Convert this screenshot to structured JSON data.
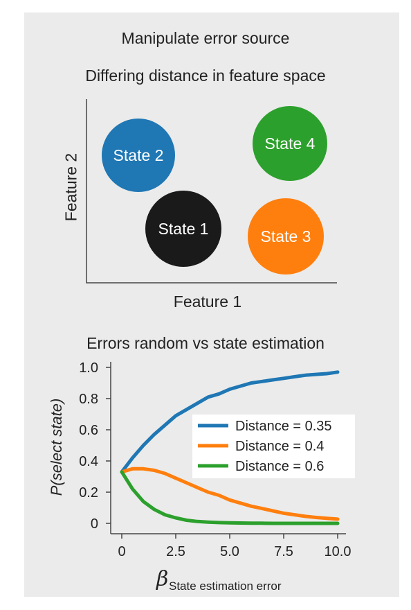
{
  "header": {
    "title": "Manipulate error source",
    "subtitle": "Differing distance in feature space"
  },
  "feature_space": {
    "xlabel": "Feature 1",
    "ylabel": "Feature 2",
    "states": [
      {
        "label": "State 2",
        "color": "#1f77b4"
      },
      {
        "label": "State 4",
        "color": "#2ca02c"
      },
      {
        "label": "State 1",
        "color": "#1a1a1a"
      },
      {
        "label": "State 3",
        "color": "#ff7f0e"
      }
    ]
  },
  "chart_data": {
    "type": "line",
    "title": "Errors random vs state estimation",
    "xlabel_symbol": "β",
    "xlabel_subscript": "State estimation error",
    "ylabel": "P(select state)",
    "xlim": [
      0,
      10
    ],
    "ylim": [
      0,
      1
    ],
    "xticks": [
      "0",
      "2.5",
      "5.0",
      "7.5",
      "10.0"
    ],
    "yticks": [
      "0",
      "0.2",
      "0.4",
      "0.6",
      "0.8",
      "1.0"
    ],
    "legend_position": "center-right",
    "series": [
      {
        "name": "Distance = 0.35",
        "color": "#1f77b4",
        "x": [
          0,
          0.5,
          1,
          1.5,
          2,
          2.5,
          3,
          3.5,
          4,
          4.5,
          5,
          5.5,
          6,
          6.5,
          7,
          7.5,
          8,
          8.5,
          9,
          9.5,
          10
        ],
        "y": [
          0.33,
          0.42,
          0.5,
          0.57,
          0.63,
          0.69,
          0.73,
          0.77,
          0.81,
          0.83,
          0.86,
          0.88,
          0.9,
          0.91,
          0.92,
          0.93,
          0.94,
          0.95,
          0.955,
          0.96,
          0.97
        ]
      },
      {
        "name": "Distance = 0.4",
        "color": "#ff7f0e",
        "x": [
          0,
          0.5,
          1,
          1.5,
          2,
          2.5,
          3,
          3.5,
          4,
          4.5,
          5,
          5.5,
          6,
          6.5,
          7,
          7.5,
          8,
          8.5,
          9,
          9.5,
          10
        ],
        "y": [
          0.33,
          0.35,
          0.35,
          0.34,
          0.32,
          0.29,
          0.26,
          0.23,
          0.2,
          0.18,
          0.15,
          0.13,
          0.11,
          0.095,
          0.08,
          0.065,
          0.055,
          0.045,
          0.038,
          0.032,
          0.027
        ]
      },
      {
        "name": "Distance = 0.6",
        "color": "#2ca02c",
        "x": [
          0,
          0.5,
          1,
          1.5,
          2,
          2.5,
          3,
          3.5,
          4,
          4.5,
          5,
          5.5,
          6,
          6.5,
          7,
          7.5,
          8,
          8.5,
          9,
          9.5,
          10
        ],
        "y": [
          0.33,
          0.22,
          0.14,
          0.09,
          0.055,
          0.035,
          0.02,
          0.012,
          0.008,
          0.005,
          0.003,
          0.002,
          0.001,
          0.001,
          0,
          0,
          0,
          0,
          0,
          0,
          0
        ]
      }
    ]
  }
}
